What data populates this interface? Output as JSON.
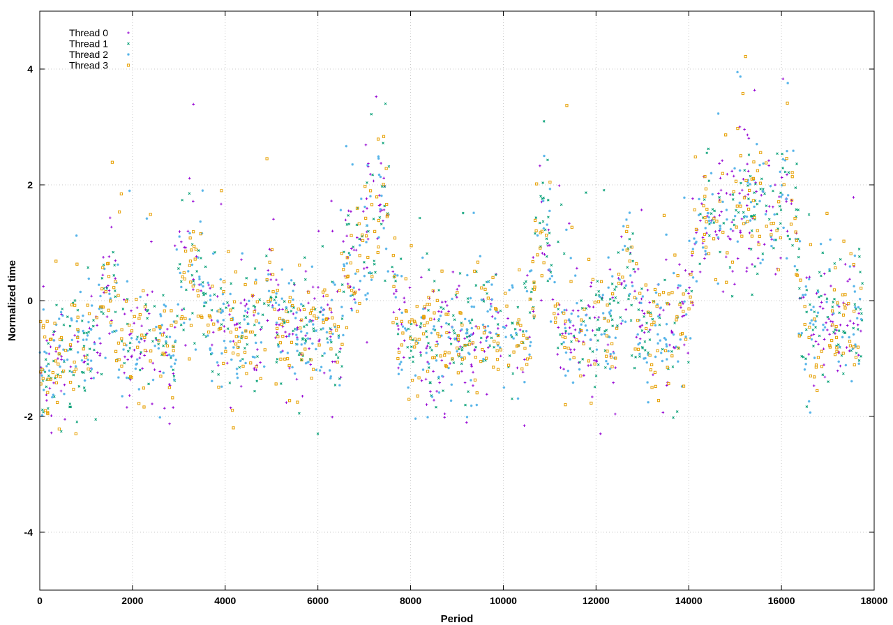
{
  "chart_data": {
    "type": "scatter",
    "xlabel": "Period",
    "ylabel": "Normalized time",
    "xlim": [
      0,
      18000
    ],
    "ylim": [
      -5,
      5
    ],
    "xticks": [
      0,
      2000,
      4000,
      6000,
      8000,
      10000,
      12000,
      14000,
      16000,
      18000
    ],
    "yticks": [
      -4,
      -2,
      0,
      2,
      4
    ],
    "grid": true,
    "legend_position": "top-left",
    "series": [
      {
        "name": "Thread 0",
        "color": "#9400d3",
        "marker": "plus"
      },
      {
        "name": "Thread 1",
        "color": "#009e73",
        "marker": "cross"
      },
      {
        "name": "Thread 2",
        "color": "#56b4e9",
        "marker": "asterisk"
      },
      {
        "name": "Thread 3",
        "color": "#e69f00",
        "marker": "square"
      }
    ],
    "trend": {
      "x": [
        0,
        300,
        600,
        900,
        1200,
        1400,
        1600,
        1700,
        2000,
        2300,
        2600,
        2900,
        3000,
        3300,
        3500,
        3700,
        4000,
        4300,
        4600,
        4800,
        5000,
        5100,
        5300,
        5600,
        5900,
        6200,
        6500,
        6600,
        6800,
        7000,
        7200,
        7400,
        7600,
        7700,
        8000,
        8400,
        8800,
        9200,
        9600,
        10000,
        10400,
        10600,
        10800,
        11000,
        11100,
        11200,
        11600,
        12000,
        12400,
        12600,
        12700,
        12900,
        13200,
        13600,
        14000,
        14100,
        14400,
        14800,
        15200,
        15600,
        16000,
        16300,
        16400,
        16700,
        17000,
        17400,
        17750
      ],
      "y": [
        -1.3,
        -1.1,
        -0.9,
        -0.9,
        -0.7,
        -0.3,
        0.2,
        -0.8,
        -0.9,
        -0.7,
        -0.8,
        -0.9,
        0.3,
        0.4,
        0.2,
        -0.6,
        -0.6,
        -0.7,
        -0.6,
        -0.5,
        0.4,
        -0.5,
        -0.6,
        -0.7,
        -0.6,
        -0.6,
        -0.5,
        0.6,
        0.8,
        1.0,
        1.5,
        1.8,
        1.2,
        -0.6,
        -0.7,
        -0.7,
        -0.6,
        -0.7,
        -0.6,
        -0.6,
        -0.7,
        -0.3,
        1.0,
        1.3,
        -0.3,
        -0.5,
        -0.5,
        -0.5,
        -0.6,
        0.6,
        0.8,
        -0.5,
        -0.6,
        -0.6,
        -0.3,
        0.9,
        1.3,
        1.4,
        1.5,
        1.6,
        1.7,
        1.6,
        -0.4,
        -0.5,
        -0.3,
        -0.5,
        -0.4
      ]
    },
    "spread": 0.55
  }
}
